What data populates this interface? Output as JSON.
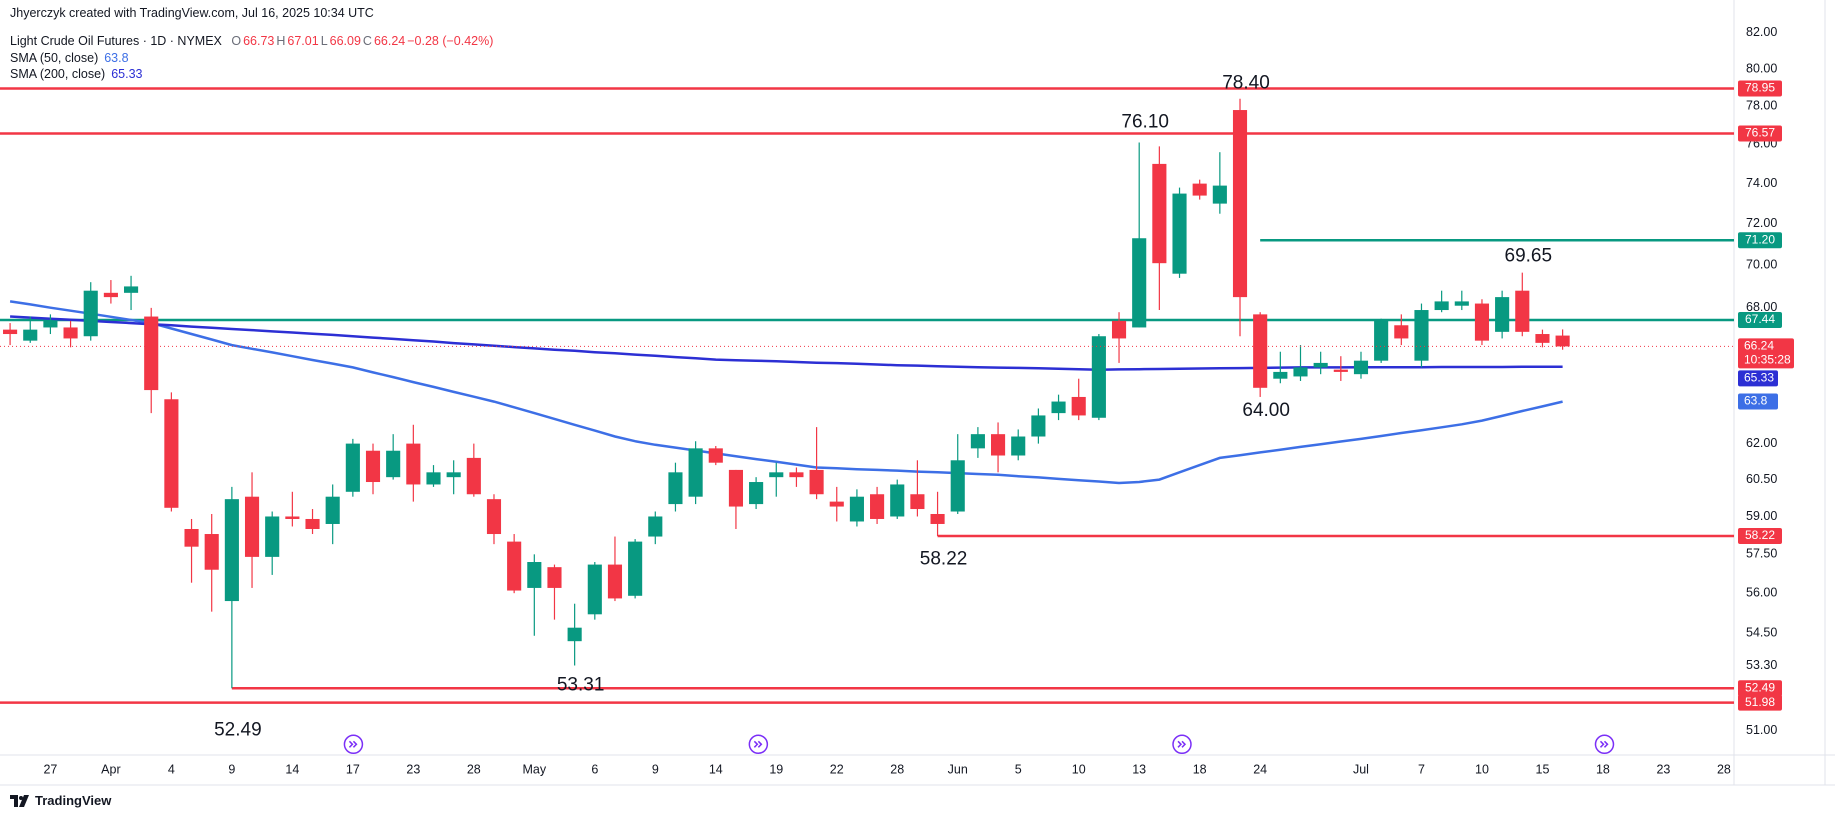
{
  "header": {
    "attribution": "Jhyerczyk created with TradingView.com, Jul 16, 2025 10:34 UTC"
  },
  "chart_data": {
    "type": "candlestick",
    "title": "Light Crude Oil Futures · 1D · NYMEX",
    "ohlc_legend": [
      {
        "label": "O",
        "value": 66.73
      },
      {
        "label": "H",
        "value": 67.01
      },
      {
        "label": "L",
        "value": 66.09
      },
      {
        "label": "C",
        "value": 66.24
      }
    ],
    "change": "−0.28 (−0.42%)",
    "countdown": "10:35:28",
    "categories": [
      null,
      null,
      "27",
      null,
      null,
      "Apr",
      null,
      null,
      "4",
      null,
      null,
      "9",
      null,
      null,
      "14",
      null,
      null,
      "17",
      null,
      null,
      "23",
      null,
      null,
      "28",
      null,
      null,
      "May",
      null,
      null,
      "6",
      null,
      null,
      "9",
      null,
      null,
      "14",
      null,
      null,
      "19",
      null,
      null,
      "22",
      null,
      null,
      "28",
      null,
      null,
      "Jun",
      null,
      null,
      "5",
      null,
      null,
      "10",
      null,
      null,
      "13",
      null,
      null,
      "18",
      null,
      null,
      "24",
      null,
      null,
      null,
      null,
      "Jul",
      null,
      null,
      "7",
      null,
      null,
      "10",
      null,
      null,
      "15",
      null,
      null,
      "18",
      null,
      null,
      "23",
      null,
      null,
      "28"
    ],
    "open": [
      67.0,
      66.5,
      67.1,
      67.1,
      66.7,
      68.7,
      68.7,
      67.6,
      63.9,
      58.5,
      58.3,
      55.7,
      59.8,
      57.4,
      59.0,
      58.9,
      58.7,
      60.0,
      61.7,
      60.6,
      62.0,
      60.3,
      60.6,
      61.4,
      59.7,
      58.0,
      56.2,
      57.0,
      54.2,
      55.2,
      57.1,
      55.9,
      58.2,
      59.5,
      59.8,
      61.8,
      60.9,
      59.5,
      60.6,
      60.8,
      60.9,
      59.6,
      58.8,
      59.9,
      59.0,
      59.9,
      59.1,
      59.2,
      61.8,
      62.4,
      61.5,
      62.3,
      63.3,
      64.0,
      63.1,
      67.4,
      67.1,
      75.0,
      69.6,
      74.0,
      73.0,
      77.8,
      67.7,
      64.8,
      64.9,
      65.3,
      65.2,
      65.0,
      65.6,
      67.2,
      65.6,
      67.9,
      68.1,
      68.2,
      66.9,
      68.8,
      66.8,
      66.73,
      null,
      null,
      null,
      null,
      null,
      null,
      null,
      null
    ],
    "high": [
      67.3,
      67.6,
      67.7,
      67.4,
      69.2,
      69.3,
      69.5,
      68.0,
      64.2,
      58.9,
      59.1,
      60.2,
      60.8,
      59.2,
      60.0,
      59.3,
      60.3,
      62.2,
      62.0,
      62.4,
      62.8,
      61.1,
      61.3,
      62.0,
      59.9,
      58.3,
      57.5,
      57.1,
      55.6,
      57.2,
      58.2,
      58.1,
      59.2,
      61.2,
      62.1,
      61.9,
      60.9,
      60.6,
      61.2,
      61.0,
      62.7,
      60.2,
      60.1,
      60.2,
      60.5,
      61.3,
      60.0,
      62.4,
      62.7,
      62.9,
      62.6,
      63.5,
      64.1,
      64.8,
      66.8,
      67.8,
      76.1,
      75.9,
      73.8,
      74.2,
      75.6,
      78.4,
      67.8,
      66.0,
      66.3,
      66.0,
      65.8,
      66.0,
      67.5,
      67.7,
      68.2,
      68.8,
      68.8,
      68.4,
      68.8,
      69.65,
      67.0,
      67.01,
      null,
      null,
      null,
      null,
      null,
      null,
      null,
      null
    ],
    "low": [
      66.3,
      66.4,
      66.8,
      66.2,
      66.5,
      68.2,
      67.9,
      63.3,
      59.2,
      56.4,
      55.3,
      52.49,
      56.2,
      56.7,
      58.6,
      58.3,
      57.9,
      59.8,
      59.9,
      60.5,
      59.6,
      60.2,
      59.9,
      59.8,
      57.9,
      56.0,
      54.4,
      55.0,
      53.31,
      55.0,
      55.7,
      55.8,
      57.9,
      59.2,
      59.5,
      61.1,
      58.5,
      59.3,
      59.8,
      60.2,
      59.7,
      58.8,
      58.6,
      58.7,
      58.9,
      59.0,
      58.22,
      59.1,
      61.4,
      60.8,
      61.3,
      62.0,
      63.0,
      63.0,
      63.0,
      65.5,
      67.1,
      67.9,
      69.4,
      73.2,
      72.5,
      66.7,
      64.0,
      64.6,
      64.7,
      65.0,
      64.7,
      64.8,
      65.5,
      66.3,
      65.3,
      67.8,
      67.9,
      66.3,
      66.6,
      66.7,
      66.2,
      66.09,
      null,
      null,
      null,
      null,
      null,
      null,
      null,
      null
    ],
    "close": [
      66.8,
      67.0,
      67.4,
      66.6,
      68.8,
      68.5,
      69.0,
      64.3,
      59.35,
      57.8,
      56.9,
      59.7,
      57.4,
      59.0,
      58.9,
      58.5,
      59.8,
      62.0,
      60.4,
      61.7,
      60.3,
      60.8,
      60.8,
      59.9,
      58.3,
      56.1,
      57.2,
      56.2,
      54.7,
      57.1,
      55.8,
      58.0,
      59.0,
      60.8,
      61.8,
      61.2,
      59.4,
      60.4,
      60.8,
      60.6,
      59.9,
      59.4,
      59.8,
      58.9,
      60.3,
      59.3,
      58.7,
      61.3,
      62.4,
      61.5,
      62.3,
      63.2,
      63.8,
      63.2,
      66.7,
      66.6,
      71.3,
      70.1,
      73.5,
      73.4,
      73.9,
      68.5,
      64.4,
      65.1,
      65.3,
      65.5,
      65.1,
      65.6,
      67.4,
      66.6,
      67.9,
      68.3,
      68.3,
      66.5,
      68.5,
      66.9,
      66.4,
      66.24,
      null,
      null,
      null,
      null,
      null,
      null,
      null,
      null
    ],
    "up_color": "#089981",
    "down_color": "#f23645",
    "series": [
      {
        "name": "SMA (50, close)",
        "color": "#3d6fe6",
        "values": [
          68.3,
          68.16,
          68.01,
          67.87,
          67.73,
          67.59,
          67.44,
          67.3,
          67.05,
          66.8,
          66.55,
          66.3,
          66.13,
          65.97,
          65.8,
          65.63,
          65.47,
          65.3,
          65.08,
          64.87,
          64.65,
          64.44,
          64.22,
          64.01,
          63.8,
          63.55,
          63.3,
          63.05,
          62.8,
          62.55,
          62.3,
          62.1,
          61.95,
          61.83,
          61.71,
          61.59,
          61.47,
          61.35,
          61.24,
          61.12,
          61.0,
          60.97,
          60.93,
          60.9,
          60.87,
          60.83,
          60.8,
          60.77,
          60.73,
          60.7,
          60.64,
          60.59,
          60.53,
          60.47,
          60.42,
          60.36,
          60.4,
          60.5,
          60.8,
          61.1,
          61.4,
          61.51,
          61.63,
          61.74,
          61.86,
          61.97,
          62.09,
          62.2,
          62.32,
          62.45,
          62.57,
          62.69,
          62.82,
          62.98,
          63.18,
          63.39,
          63.59,
          63.8,
          null,
          null,
          null,
          null,
          null,
          null,
          null,
          null
        ]
      },
      {
        "name": "SMA (200, close)",
        "color": "#2c2fd4",
        "values": [
          67.6,
          67.55,
          67.5,
          67.45,
          67.4,
          67.35,
          67.3,
          67.25,
          67.2,
          67.14,
          67.09,
          67.03,
          66.98,
          66.92,
          66.87,
          66.81,
          66.76,
          66.7,
          66.64,
          66.58,
          66.52,
          66.46,
          66.39,
          66.33,
          66.27,
          66.21,
          66.15,
          66.09,
          66.04,
          65.98,
          65.93,
          65.87,
          65.82,
          65.76,
          65.71,
          65.65,
          65.62,
          65.6,
          65.57,
          65.54,
          65.51,
          65.49,
          65.46,
          65.43,
          65.4,
          65.38,
          65.35,
          65.33,
          65.31,
          65.29,
          65.28,
          65.26,
          65.24,
          65.22,
          65.2,
          65.21,
          65.22,
          65.23,
          65.24,
          65.25,
          65.26,
          65.27,
          65.28,
          65.29,
          65.3,
          65.3,
          65.3,
          65.31,
          65.31,
          65.31,
          65.31,
          65.32,
          65.32,
          65.32,
          65.32,
          65.33,
          65.33,
          65.33,
          null,
          null,
          null,
          null,
          null,
          null,
          null,
          null
        ]
      }
    ],
    "ylim": [
      50.16,
      83.85
    ],
    "log": true,
    "grid": false,
    "yticks": [
      {
        "value": 82,
        "label": "82.00"
      },
      {
        "value": 80,
        "label": "80.00"
      },
      {
        "value": 78,
        "label": "78.00"
      },
      {
        "value": 76,
        "label": "76.00"
      },
      {
        "value": 74,
        "label": "74.00"
      },
      {
        "value": 72,
        "label": "72.00"
      },
      {
        "value": 70,
        "label": "70.00"
      },
      {
        "value": 68,
        "label": "68.00"
      },
      {
        "value": 62,
        "label": "62.00"
      },
      {
        "value": 60.5,
        "label": "60.50"
      },
      {
        "value": 59,
        "label": "59.00"
      },
      {
        "value": 57.5,
        "label": "57.50"
      },
      {
        "value": 56,
        "label": "56.00"
      },
      {
        "value": 54.5,
        "label": "54.50"
      },
      {
        "value": 53.3,
        "label": "53.30"
      },
      {
        "value": 51,
        "label": "51.00"
      }
    ],
    "levels": [
      {
        "value": 78.95,
        "color": "#f23645"
      },
      {
        "value": 76.57,
        "color": "#f23645"
      },
      {
        "value": 71.2,
        "label": "71.20",
        "color": "#089981"
      },
      {
        "value": 67.44,
        "color": "#089981"
      },
      {
        "value": 58.22,
        "color": "#f23645"
      },
      {
        "value": 52.49,
        "color": "#f23645"
      },
      {
        "value": 51.98,
        "color": "#f23645"
      }
    ],
    "annotations": [
      {
        "value": 78.4,
        "label": "78.40"
      },
      {
        "value": 76.1,
        "label": "76.10"
      },
      {
        "value": 69.65,
        "label": "69.65"
      },
      {
        "value": 64,
        "label": "64.00"
      },
      {
        "value": 58.22,
        "label": "58.22"
      },
      {
        "value": 53.31,
        "label": "53.31"
      },
      {
        "value": 52.49,
        "label": "52.49"
      }
    ]
  },
  "footer": {
    "brand": "TradingView"
  }
}
